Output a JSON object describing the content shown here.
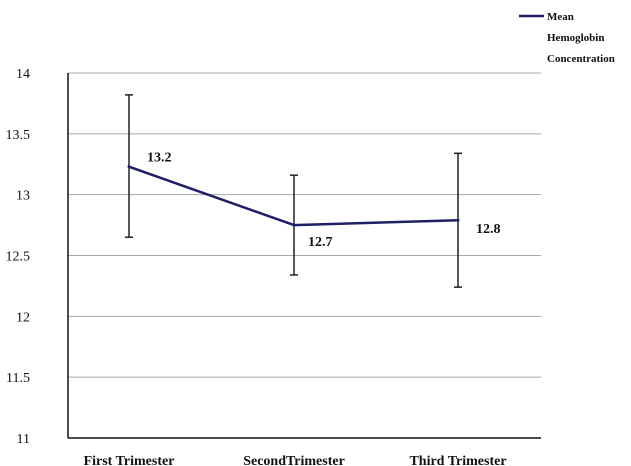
{
  "chart_data": {
    "type": "line",
    "categories": [
      "First Trimester",
      "SecondTrimester",
      "Third Trimester"
    ],
    "series": [
      {
        "name": "Mean Hemoglobin Concentration",
        "values": [
          13.23,
          12.75,
          12.79
        ],
        "data_labels": [
          "13.2",
          "12.7",
          "12.8"
        ],
        "error_low": [
          12.65,
          12.34,
          12.24
        ],
        "error_high": [
          13.82,
          13.16,
          13.34
        ],
        "color": "#1f1f66"
      }
    ],
    "ylim": [
      11,
      14
    ],
    "yticks": [
      "11",
      "11.5",
      "12",
      "12.5",
      "13",
      "13.5",
      "14"
    ],
    "legend": {
      "position": "top-right",
      "lines": [
        "Mean",
        "Hemoglobin",
        "Concentration"
      ]
    },
    "grid": true
  }
}
